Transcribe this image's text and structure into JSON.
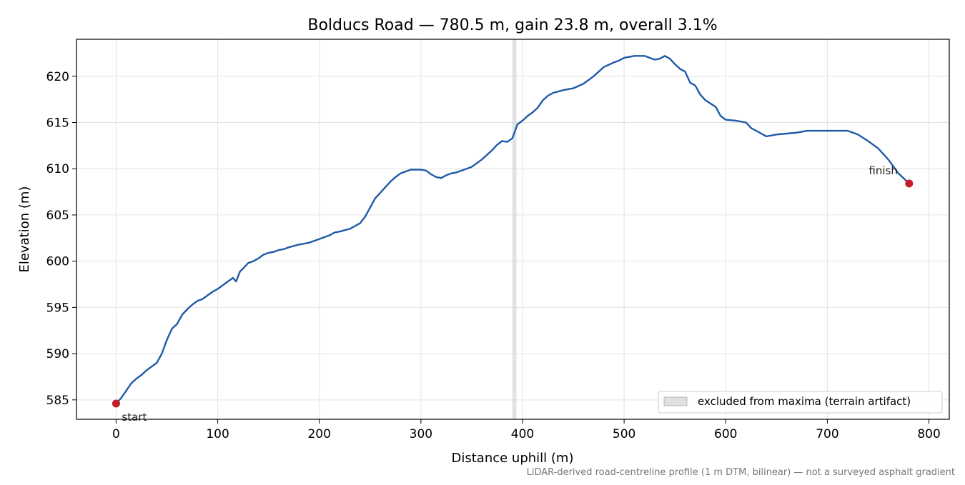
{
  "chart_data": {
    "type": "line",
    "title": "Bolducs Road — 780.5 m, gain 23.8 m, overall 3.1%",
    "xlabel": "Distance uphill (m)",
    "ylabel": "Elevation (m)",
    "xlim": [
      -39,
      820
    ],
    "ylim": [
      582.9,
      624.0
    ],
    "xticks": [
      0,
      100,
      200,
      300,
      400,
      500,
      600,
      700,
      800
    ],
    "yticks": [
      585,
      590,
      595,
      600,
      605,
      610,
      615,
      620
    ],
    "grid": true,
    "legend": {
      "position": "lower-right",
      "entries": [
        "excluded from maxima (terrain artifact)"
      ]
    },
    "excluded_band": {
      "x0": 390,
      "x1": 394,
      "label": "excluded from maxima (terrain artifact)"
    },
    "line_color": "#1f5aa8",
    "marker_color": "#c41e2a",
    "series": [
      {
        "x": [
          0,
          5,
          10,
          15,
          20,
          25,
          30,
          35,
          40,
          45,
          50,
          55,
          60,
          65,
          70,
          75,
          80,
          85,
          90,
          95,
          100,
          105,
          110,
          115,
          118,
          122,
          125,
          130,
          135,
          140,
          145,
          150,
          155,
          160,
          165,
          170,
          180,
          190,
          200,
          205,
          210,
          215,
          220,
          230,
          240,
          245,
          250,
          255,
          260,
          265,
          270,
          275,
          280,
          290,
          300,
          305,
          310,
          315,
          320,
          325,
          330,
          335,
          340,
          345,
          350,
          360,
          365,
          370,
          375,
          380,
          385,
          390,
          395,
          400,
          405,
          410,
          415,
          420,
          425,
          430,
          440,
          450,
          460,
          470,
          480,
          490,
          495,
          500,
          510,
          520,
          530,
          535,
          540,
          545,
          550,
          555,
          560,
          565,
          570,
          575,
          580,
          590,
          595,
          600,
          610,
          620,
          625,
          630,
          640,
          650,
          660,
          670,
          680,
          690,
          700,
          710,
          720,
          730,
          740,
          750,
          760,
          770,
          780.5
        ],
        "y": [
          584.6,
          585.2,
          586.0,
          586.8,
          587.3,
          587.7,
          588.2,
          588.6,
          589.0,
          590.0,
          591.5,
          592.7,
          593.2,
          594.2,
          594.8,
          595.3,
          595.7,
          595.9,
          596.3,
          596.7,
          597.0,
          597.4,
          597.8,
          598.2,
          597.8,
          598.9,
          599.2,
          599.8,
          600.0,
          600.3,
          600.7,
          600.9,
          601.0,
          601.2,
          601.3,
          601.5,
          601.8,
          602.0,
          602.4,
          602.6,
          602.8,
          603.1,
          603.2,
          603.5,
          604.1,
          604.8,
          605.8,
          606.8,
          607.4,
          608.0,
          608.6,
          609.1,
          609.5,
          609.9,
          609.9,
          609.8,
          609.4,
          609.1,
          609.0,
          609.3,
          609.5,
          609.6,
          609.8,
          610.0,
          610.2,
          611.0,
          611.5,
          612.0,
          612.6,
          613.0,
          612.9,
          613.3,
          614.8,
          615.2,
          615.7,
          616.1,
          616.6,
          617.4,
          617.9,
          618.2,
          618.5,
          618.7,
          619.2,
          620.0,
          621.0,
          621.5,
          621.7,
          622.0,
          622.2,
          622.2,
          621.8,
          621.9,
          622.2,
          621.9,
          621.3,
          620.8,
          620.5,
          619.3,
          619.0,
          618.0,
          617.4,
          616.7,
          615.7,
          615.3,
          615.2,
          615.0,
          614.4,
          614.1,
          613.5,
          613.7,
          613.8,
          613.9,
          614.1,
          614.1,
          614.1,
          614.1,
          614.1,
          613.7,
          613.0,
          612.2,
          611.0,
          609.5,
          608.4
        ]
      }
    ],
    "annotations": [
      {
        "text": "start",
        "x": 0,
        "y": 584.6
      },
      {
        "text": "finish",
        "x": 780.5,
        "y": 608.4
      }
    ],
    "footnote": "LiDAR-derived road-centreline profile (1 m DTM, bilinear) — not a surveyed asphalt gradient"
  }
}
